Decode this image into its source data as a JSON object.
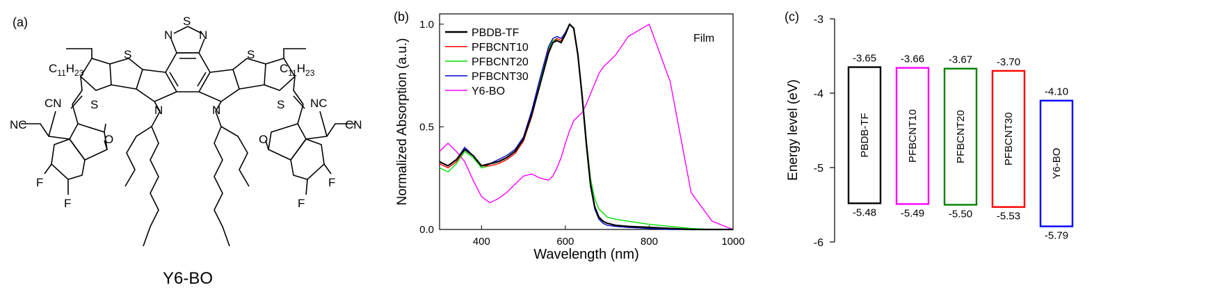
{
  "panel_a": {
    "label": "(a)",
    "molecule_name": "Y6-BO",
    "atoms": {
      "N": "N",
      "S": "S",
      "alkyl": "C",
      "alkyl_sub": "11",
      "alkyl_H": "H",
      "alkyl_sub2": "23",
      "cn": "CN",
      "nc": "NC",
      "o": "O",
      "f": "F"
    }
  },
  "panel_b": {
    "label": "(b)",
    "annotation": "Film"
  },
  "panel_c": {
    "label": "(c)"
  },
  "chart_data": [
    {
      "type": "line",
      "title": "",
      "xlabel": "Wavelength (nm)",
      "ylabel": "Normalized Absorption (a.u.)",
      "xlim": [
        300,
        1000
      ],
      "ylim": [
        0,
        1.05
      ],
      "xticks": [
        400,
        600,
        800,
        1000
      ],
      "yticks": [
        0.0,
        0.5,
        1.0
      ],
      "ytick_labels": [
        "0.0",
        "0.5",
        "1.0"
      ],
      "legend_position": "top-left",
      "x": [
        300,
        320,
        340,
        360,
        380,
        400,
        420,
        440,
        460,
        480,
        500,
        520,
        540,
        560,
        570,
        580,
        590,
        600,
        610,
        620,
        630,
        640,
        650,
        660,
        670,
        680,
        690,
        700,
        720,
        750,
        800,
        850,
        900,
        950,
        1000
      ],
      "series": [
        {
          "name": "PBDB-TF",
          "color": "#000000",
          "values": [
            0.33,
            0.31,
            0.34,
            0.39,
            0.36,
            0.31,
            0.32,
            0.33,
            0.35,
            0.38,
            0.44,
            0.56,
            0.71,
            0.86,
            0.91,
            0.92,
            0.91,
            0.95,
            1.0,
            0.98,
            0.85,
            0.65,
            0.42,
            0.22,
            0.11,
            0.06,
            0.04,
            0.03,
            0.02,
            0.015,
            0.01,
            0.005,
            0.0,
            0.0,
            0.0
          ]
        },
        {
          "name": "PFBCNT10",
          "color": "#ff0000",
          "values": [
            0.32,
            0.3,
            0.33,
            0.39,
            0.36,
            0.31,
            0.31,
            0.32,
            0.34,
            0.37,
            0.43,
            0.55,
            0.71,
            0.87,
            0.91,
            0.93,
            0.92,
            0.95,
            1.0,
            0.98,
            0.85,
            0.64,
            0.41,
            0.22,
            0.11,
            0.06,
            0.04,
            0.03,
            0.02,
            0.015,
            0.01,
            0.005,
            0.0,
            0.0,
            0.0
          ]
        },
        {
          "name": "PFBCNT20",
          "color": "#00dd00",
          "values": [
            0.3,
            0.28,
            0.32,
            0.38,
            0.35,
            0.3,
            0.31,
            0.32,
            0.34,
            0.37,
            0.43,
            0.56,
            0.72,
            0.88,
            0.92,
            0.93,
            0.92,
            0.96,
            1.0,
            0.98,
            0.86,
            0.66,
            0.44,
            0.25,
            0.15,
            0.1,
            0.08,
            0.06,
            0.05,
            0.04,
            0.025,
            0.015,
            0.005,
            0.0,
            0.0
          ]
        },
        {
          "name": "PFBCNT30",
          "color": "#0000cc",
          "values": [
            0.33,
            0.31,
            0.34,
            0.4,
            0.36,
            0.31,
            0.32,
            0.34,
            0.36,
            0.39,
            0.45,
            0.58,
            0.74,
            0.89,
            0.93,
            0.94,
            0.93,
            0.96,
            1.0,
            0.98,
            0.85,
            0.64,
            0.41,
            0.21,
            0.1,
            0.05,
            0.03,
            0.02,
            0.015,
            0.01,
            0.005,
            0.0,
            0.0,
            0.0,
            0.0
          ]
        },
        {
          "name": "Y6-BO",
          "color": "#ff00ff",
          "values": [
            0.38,
            0.42,
            0.38,
            0.33,
            0.24,
            0.16,
            0.13,
            0.15,
            0.18,
            0.22,
            0.26,
            0.27,
            0.25,
            0.24,
            0.26,
            0.3,
            0.35,
            0.42,
            0.48,
            0.53,
            0.55,
            0.57,
            0.61,
            0.66,
            0.71,
            0.76,
            0.79,
            0.81,
            0.85,
            0.94,
            1.0,
            0.72,
            0.18,
            0.04,
            0.0
          ]
        }
      ]
    },
    {
      "type": "bar",
      "title": "",
      "ylabel": "Energy level (eV)",
      "ylim": [
        -6,
        -3
      ],
      "yticks": [
        -3,
        -4,
        -5,
        -6
      ],
      "ytick_labels": [
        "-3",
        "-4",
        "-5",
        "-6"
      ],
      "series": [
        {
          "name": "PBDB-TF",
          "lumo": -3.65,
          "homo": -5.48,
          "lumo_label": "-3.65",
          "homo_label": "-5.48",
          "color": "#000000"
        },
        {
          "name": "PFBCNT10",
          "lumo": -3.66,
          "homo": -5.49,
          "lumo_label": "-3.66",
          "homo_label": "-5.49",
          "color": "#ff00ff"
        },
        {
          "name": "PFBCNT20",
          "lumo": -3.67,
          "homo": -5.5,
          "lumo_label": "-3.67",
          "homo_label": "-5.50",
          "color": "#008000"
        },
        {
          "name": "PFBCNT30",
          "lumo": -3.7,
          "homo": -5.53,
          "lumo_label": "-3.70",
          "homo_label": "-5.53",
          "color": "#ff0000"
        },
        {
          "name": "Y6-BO",
          "lumo": -4.1,
          "homo": -5.79,
          "lumo_label": "-4.10",
          "homo_label": "-5.79",
          "color": "#0000ff"
        }
      ]
    }
  ]
}
